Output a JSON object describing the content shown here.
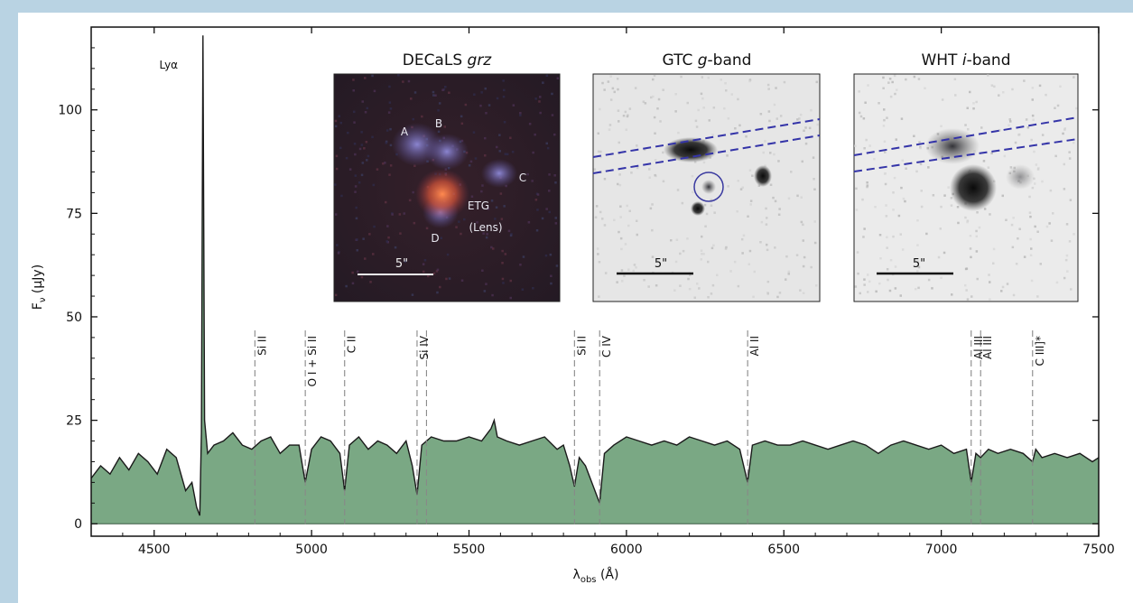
{
  "chart_data": {
    "type": "area",
    "xlabel_main": "λ",
    "xlabel_sub": "obs",
    "xlabel_unit": " (Å)",
    "ylabel_main": "F",
    "ylabel_sub": "ν",
    "ylabel_unit": " (μJy)",
    "xlim": [
      4300,
      7500
    ],
    "ylim": [
      -3,
      120
    ],
    "xticks": [
      4500,
      5000,
      5500,
      6000,
      6500,
      7000,
      7500
    ],
    "yticks": [
      0,
      25,
      50,
      75,
      100
    ],
    "grid": false,
    "fill_color": "#7aa884",
    "line_color": "#1a1a1a",
    "spectrum": {
      "x": [
        4300,
        4330,
        4360,
        4390,
        4420,
        4450,
        4480,
        4510,
        4540,
        4570,
        4600,
        4620,
        4635,
        4645,
        4650,
        4655,
        4660,
        4670,
        4690,
        4720,
        4750,
        4780,
        4810,
        4840,
        4870,
        4900,
        4930,
        4960,
        4980,
        5000,
        5030,
        5060,
        5090,
        5105,
        5120,
        5150,
        5180,
        5210,
        5240,
        5270,
        5300,
        5320,
        5335,
        5350,
        5380,
        5420,
        5460,
        5500,
        5540,
        5570,
        5580,
        5590,
        5620,
        5660,
        5700,
        5740,
        5780,
        5800,
        5820,
        5835,
        5850,
        5870,
        5890,
        5905,
        5915,
        5930,
        5960,
        6000,
        6040,
        6080,
        6120,
        6160,
        6200,
        6240,
        6280,
        6320,
        6360,
        6385,
        6400,
        6440,
        6480,
        6520,
        6560,
        6600,
        6640,
        6680,
        6720,
        6760,
        6800,
        6840,
        6880,
        6920,
        6960,
        7000,
        7040,
        7080,
        7095,
        7110,
        7125,
        7150,
        7180,
        7220,
        7260,
        7290,
        7300,
        7320,
        7360,
        7400,
        7440,
        7480,
        7500
      ],
      "y": [
        11,
        14,
        12,
        16,
        13,
        17,
        15,
        12,
        18,
        16,
        8,
        10,
        4,
        2,
        22,
        118,
        25,
        17,
        19,
        20,
        22,
        19,
        18,
        20,
        21,
        17,
        19,
        19,
        10,
        18,
        21,
        20,
        17,
        8,
        19,
        21,
        18,
        20,
        19,
        17,
        20,
        14,
        7,
        19,
        21,
        20,
        20,
        21,
        20,
        23,
        25,
        21,
        20,
        19,
        20,
        21,
        18,
        19,
        14,
        9,
        16,
        14,
        10,
        7,
        5,
        17,
        19,
        21,
        20,
        19,
        20,
        19,
        21,
        20,
        19,
        20,
        18,
        10,
        19,
        20,
        19,
        19,
        20,
        19,
        18,
        19,
        20,
        19,
        17,
        19,
        20,
        19,
        18,
        19,
        17,
        18,
        10,
        17,
        16,
        18,
        17,
        18,
        17,
        15,
        18,
        16,
        17,
        16,
        17,
        15,
        16
      ]
    },
    "annotations": [
      {
        "label": "Lyα",
        "x": 4655,
        "style": "solid"
      },
      {
        "label": "Si II",
        "x": 4820,
        "style": "dashed"
      },
      {
        "label": "O I + Si II",
        "x": 4980,
        "style": "dashed"
      },
      {
        "label": "C II",
        "x": 5105,
        "style": "dashed"
      },
      {
        "label": "Si IV",
        "x": 5335,
        "style": "dashed"
      },
      {
        "label": "Si IV",
        "x": 5365,
        "style": "dashed",
        "show_label": false
      },
      {
        "label": "Si II",
        "x": 5835,
        "style": "dashed"
      },
      {
        "label": "C IV",
        "x": 5915,
        "style": "dashed"
      },
      {
        "label": "Al II",
        "x": 6385,
        "style": "dashed"
      },
      {
        "label": "Al III",
        "x": 7095,
        "style": "dashed"
      },
      {
        "label": "Al III",
        "x": 7125,
        "style": "dashed"
      },
      {
        "label": "C III]*",
        "x": 7290,
        "style": "dashed"
      }
    ]
  },
  "insets": [
    {
      "title_pre": "DECaLS ",
      "title_em": "grz",
      "title_post": "",
      "scale_label": "5\"",
      "theme": "color",
      "source_labels": [
        "A",
        "B",
        "C",
        "D",
        "ETG",
        "(Lens)"
      ]
    },
    {
      "title_pre": "GTC ",
      "title_em": "g",
      "title_post": "-band",
      "scale_label": "5\"",
      "theme": "gray"
    },
    {
      "title_pre": "WHT ",
      "title_em": "i",
      "title_post": "-band",
      "scale_label": "5\"",
      "theme": "gray"
    }
  ]
}
